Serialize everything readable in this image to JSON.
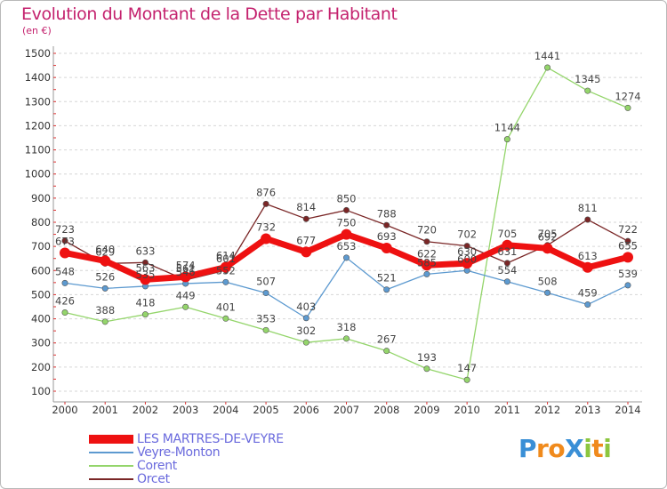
{
  "header": {
    "title": "Evolution du Montant de la Dette par Habitant",
    "unit": "(en €)"
  },
  "logo": {
    "text": "ProXiti",
    "letters": [
      {
        "ch": "P",
        "color": "#3a8fd6"
      },
      {
        "ch": "r",
        "color": "#f08a1c"
      },
      {
        "ch": "o",
        "color": "#f08a1c"
      },
      {
        "ch": "X",
        "color": "#3a8fd6"
      },
      {
        "ch": "i",
        "color": "#8cc63f"
      },
      {
        "ch": "t",
        "color": "#f08a1c"
      },
      {
        "ch": "i",
        "color": "#8cc63f"
      }
    ]
  },
  "chart_data": {
    "type": "line",
    "title": "Evolution du Montant de la Dette par Habitant",
    "ylabel": "(en €)",
    "xlabel": "",
    "ylim": [
      100,
      1500
    ],
    "yticks": [
      100,
      200,
      300,
      400,
      500,
      600,
      700,
      800,
      900,
      1000,
      1100,
      1200,
      1300,
      1400,
      1500
    ],
    "grid": "horizontal-dashed",
    "legend_position": "bottom-left",
    "x": [
      "2000",
      "2001",
      "2002",
      "2003",
      "2004",
      "2005",
      "2006",
      "2007",
      "2008",
      "2009",
      "2010",
      "2011",
      "2012",
      "2013",
      "2014"
    ],
    "series": [
      {
        "name": "LES MARTRES-DE-VEYRE",
        "color": "#ee1111",
        "width": "thick",
        "values": [
          673,
          640,
          563,
          574,
          614,
          732,
          677,
          750,
          693,
          622,
          630,
          705,
          692,
          613,
          655
        ]
      },
      {
        "name": "Veyre-Monton",
        "color": "#5d9ad0",
        "width": "thin",
        "values": [
          548,
          526,
          535,
          546,
          552,
          507,
          403,
          653,
          521,
          585,
          600,
          554,
          508,
          459,
          539
        ]
      },
      {
        "name": "Corent",
        "color": "#94d56b",
        "width": "thin",
        "values": [
          426,
          388,
          418,
          449,
          401,
          353,
          302,
          318,
          267,
          193,
          147,
          1144,
          1441,
          1345,
          1274
        ]
      },
      {
        "name": "Orcet",
        "color": "#7a2626",
        "width": "thin",
        "values": [
          723,
          629,
          633,
          561,
          601,
          876,
          814,
          850,
          788,
          720,
          702,
          631,
          705,
          811,
          722
        ]
      }
    ]
  }
}
